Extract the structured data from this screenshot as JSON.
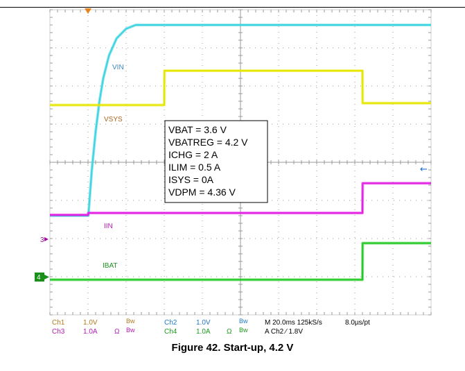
{
  "chart_data": {
    "type": "line",
    "title": "",
    "xlabel": "",
    "ylabel": "",
    "x_unit": "ms",
    "xlim": [
      0,
      200
    ],
    "divisions": {
      "x": 10,
      "y": 8
    },
    "grid": true,
    "series": [
      {
        "name": "VIN",
        "color": "#3ED3E0",
        "channel": "1",
        "volts_per_div": 1.0,
        "points": [
          [
            0,
            -1.4
          ],
          [
            20,
            -1.4
          ],
          [
            20.2,
            -1.4
          ],
          [
            22,
            -0.2
          ],
          [
            24,
            0.8
          ],
          [
            26,
            1.6
          ],
          [
            28,
            2.2
          ],
          [
            31,
            2.8
          ],
          [
            35,
            3.25
          ],
          [
            40,
            3.5
          ],
          [
            45,
            3.6
          ],
          [
            200,
            3.6
          ]
        ]
      },
      {
        "name": "VSYS",
        "color": "#E6E600",
        "channel": "1",
        "volts_per_div": 1.0,
        "points": [
          [
            0,
            1.5
          ],
          [
            60,
            1.5
          ],
          [
            60.1,
            2.4
          ],
          [
            164,
            2.4
          ],
          [
            164.1,
            1.55
          ],
          [
            200,
            1.55
          ]
        ]
      },
      {
        "name": "IIN",
        "color": "#E21FE2",
        "channel": "3",
        "amps_per_div": 1.0,
        "points": [
          [
            0,
            -1.38
          ],
          [
            20,
            -1.38
          ],
          [
            20.1,
            -1.33
          ],
          [
            164,
            -1.33
          ],
          [
            164.1,
            -0.55
          ],
          [
            200,
            -0.55
          ]
        ]
      },
      {
        "name": "IBAT",
        "color": "#22C922",
        "channel": "4",
        "amps_per_div": 1.0,
        "points": [
          [
            0,
            -3.08
          ],
          [
            164,
            -3.08
          ],
          [
            164.1,
            -2.12
          ],
          [
            200,
            -2.12
          ]
        ]
      }
    ],
    "series_labels": [
      "VIN",
      "VSYS",
      "IIN",
      "IBAT"
    ],
    "annotation": [
      "VBAT = 3.6 V",
      "VBATREG = 4.2 V",
      "ICHG = 2 A",
      "ILIM = 0.5 A",
      "ISYS = 0A",
      "VDPM = 4.36 V"
    ],
    "trigger_level_arrow": "←",
    "channel_markers": [
      "3",
      "4"
    ]
  },
  "scope_status": {
    "row1": {
      "ch1": "Ch1",
      "ch1_scale": "1.0V",
      "ch1_bw": "Bw",
      "ch2": "Ch2",
      "ch2_scale": "1.0V",
      "ch2_bw": "Bw",
      "timebase": "M 20.0ms 125kS/s",
      "resolution": "8.0µs/pt"
    },
    "row2": {
      "ch3": "Ch3",
      "ch3_scale": "1.0A",
      "ch3_omega": "Ω",
      "ch3_bw": "Bw",
      "ch4": "Ch4",
      "ch4_scale": "1.0A",
      "ch4_omega": "Ω",
      "ch4_bw": "Bw",
      "trigger": "A Ch2 ⁄ 1.8V"
    }
  },
  "caption": "Figure 42. Start-up, 4.2 V",
  "colors": {
    "vin": "#3ED3E0",
    "vsys": "#E6E600",
    "iin": "#E21FE2",
    "ibat": "#22C922",
    "grid": "#9a9a9a",
    "orange": "#E8821E"
  }
}
